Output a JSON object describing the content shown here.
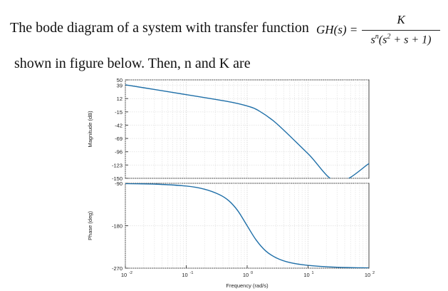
{
  "question": {
    "line1": "The bode diagram of a system with transfer function",
    "tf_lhs": "GH(s) =",
    "tf_numerator": "K",
    "tf_den_prefix": "s",
    "tf_den_exp_n": "n",
    "tf_den_paren": "(s",
    "tf_den_exp_2": "2",
    "tf_den_tail": " + s + 1)",
    "line2": "shown in figure below. Then, n and K are"
  },
  "chart_data": [
    {
      "type": "line",
      "panel": "magnitude",
      "ylabel": "Magnitude (dB)",
      "xlabel": "",
      "x_scale": "log",
      "xlim": [
        0.01,
        100
      ],
      "ylim": [
        -150,
        50
      ],
      "y_ticks": [
        "50",
        "39",
        "12",
        "-15",
        "-42",
        "-69",
        "-96",
        "-123",
        "-150"
      ],
      "y_tick_values": [
        50,
        39,
        12,
        -15,
        -42,
        -69,
        -96,
        -123,
        -150
      ],
      "grid": true,
      "series": [
        {
          "color": "#1f6fa8",
          "x": [
            0.01,
            0.03,
            0.1,
            0.3,
            0.6,
            1,
            1.5,
            3,
            10,
            30,
            100
          ],
          "y": [
            40,
            30.5,
            20,
            10.4,
            3.8,
            -3,
            -11.6,
            -38,
            -100,
            -157,
            -120
          ]
        }
      ]
    },
    {
      "type": "line",
      "panel": "phase",
      "ylabel": "Phase (deg)",
      "xlabel": "Frequency (rad/s)",
      "x_scale": "log",
      "xlim": [
        0.01,
        100
      ],
      "ylim": [
        -270,
        -90
      ],
      "y_ticks": [
        "-90",
        "-180",
        "-270"
      ],
      "y_tick_values": [
        -90,
        -180,
        -270
      ],
      "x_ticks": [
        "10",
        "10",
        "10",
        "10",
        "10"
      ],
      "x_tick_exps": [
        "-2",
        "-1",
        "0",
        "1",
        "2"
      ],
      "x_tick_values": [
        0.01,
        0.1,
        1,
        10,
        100
      ],
      "grid": true,
      "series": [
        {
          "color": "#1f6fa8",
          "x": [
            0.01,
            0.03,
            0.1,
            0.2,
            0.35,
            0.5,
            0.7,
            1,
            1.4,
            2,
            3,
            5,
            10,
            30,
            100
          ],
          "y": [
            -90.6,
            -91.7,
            -95.8,
            -102.5,
            -114,
            -127,
            -148,
            -180,
            -210,
            -233,
            -248,
            -258,
            -264,
            -268,
            -269.4
          ]
        }
      ]
    }
  ]
}
